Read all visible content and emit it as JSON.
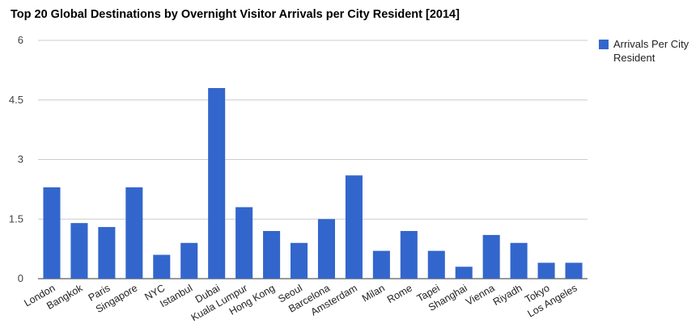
{
  "chart_data": {
    "type": "bar",
    "title": "Top 20 Global Destinations by Overnight Visitor Arrivals per City Resident [2014]",
    "xlabel": "",
    "ylabel": "",
    "ylim": [
      0,
      6
    ],
    "yticks": [
      "0",
      "1.5",
      "3",
      "4.5",
      "6"
    ],
    "ytick_values": [
      0,
      1.5,
      3,
      4.5,
      6
    ],
    "grid": true,
    "legend_position": "right",
    "categories": [
      "London",
      "Bangkok",
      "Paris",
      "Singapore",
      "NYC",
      "Istanbul",
      "Dubai",
      "Kuala Lumpur",
      "Hong Kong",
      "Seoul",
      "Barcelona",
      "Amsterdam",
      "Milan",
      "Rome",
      "Tapei",
      "Shanghai",
      "Vienna",
      "Riyadh",
      "Tokyo",
      "Los Angeles"
    ],
    "series": [
      {
        "name": "Arrivals Per City Resident",
        "legend_lines": [
          "Arrivals Per City",
          "Resident"
        ],
        "color": "#3366cc",
        "values": [
          2.3,
          1.4,
          1.3,
          2.3,
          0.6,
          0.9,
          4.8,
          1.8,
          1.2,
          0.9,
          1.5,
          2.6,
          0.7,
          1.2,
          0.7,
          0.3,
          1.1,
          0.9,
          0.4,
          0.4
        ]
      }
    ]
  }
}
